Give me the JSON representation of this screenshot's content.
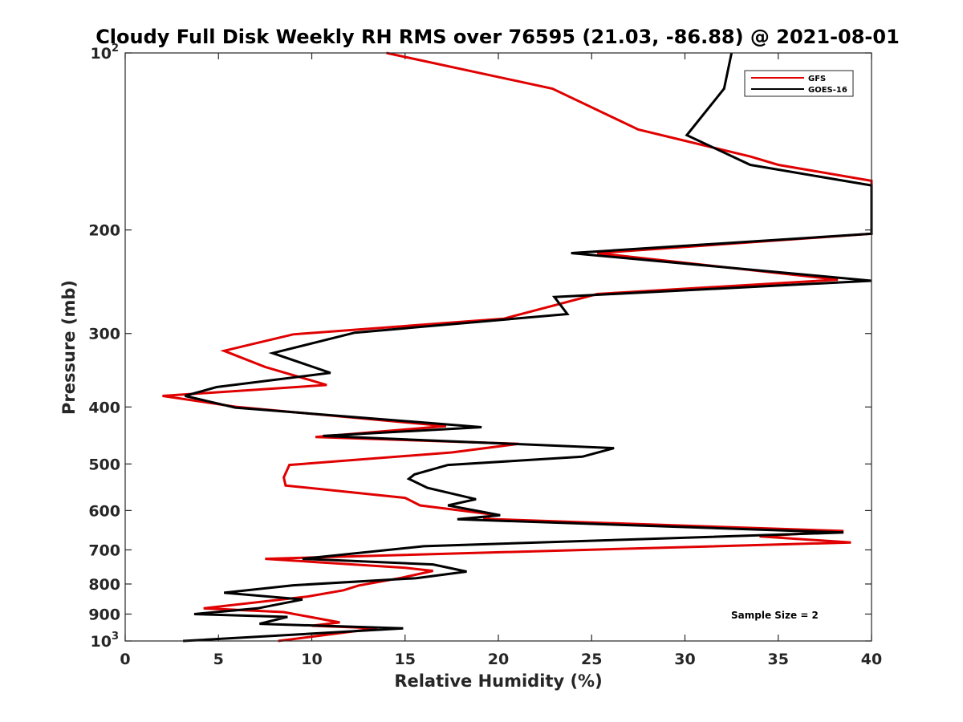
{
  "chart_data": {
    "type": "line",
    "title": "Cloudy Full Disk Weekly RH RMS over 76595 (21.03, -86.88) @ 2021-08-01",
    "xlabel": "Relative Humidity (%)",
    "ylabel": "Pressure (mb)",
    "xlim": [
      0,
      40
    ],
    "ylim": [
      100,
      1000
    ],
    "yscale": "log",
    "y_reversed": true,
    "x_ticks": [
      "0",
      "5",
      "10",
      "15",
      "20",
      "25",
      "30",
      "35",
      "40"
    ],
    "y_ticks": [
      {
        "value": 100,
        "base": "10",
        "exp": "2"
      },
      {
        "value": 200,
        "label": "200"
      },
      {
        "value": 300,
        "label": "300"
      },
      {
        "value": 400,
        "label": "400"
      },
      {
        "value": 500,
        "label": "500"
      },
      {
        "value": 600,
        "label": "600"
      },
      {
        "value": 700,
        "label": "700"
      },
      {
        "value": 800,
        "label": "800"
      },
      {
        "value": 900,
        "label": "900"
      },
      {
        "value": 1000,
        "base": "10",
        "exp": "3"
      }
    ],
    "legend": {
      "location": "top-right"
    },
    "annotation": "Sample Size = 2",
    "series": [
      {
        "name": "GFS",
        "color": "#e00000",
        "points": [
          [
            14.0,
            100
          ],
          [
            22.9,
            115
          ],
          [
            27.5,
            135
          ],
          [
            33.5,
            150
          ],
          [
            35.0,
            155
          ],
          [
            40.0,
            165
          ],
          [
            40.0,
            202
          ],
          [
            40.0,
            203
          ],
          [
            25.3,
            219
          ],
          [
            38.2,
            243
          ],
          [
            25.3,
            257
          ],
          [
            20.3,
            283
          ],
          [
            9.0,
            301
          ],
          [
            5.3,
            321
          ],
          [
            7.5,
            342
          ],
          [
            10.8,
            367
          ],
          [
            2.0,
            383
          ],
          [
            6.0,
            400
          ],
          [
            17.2,
            431
          ],
          [
            10.2,
            450
          ],
          [
            21.1,
            462
          ],
          [
            17.5,
            478
          ],
          [
            8.8,
            502
          ],
          [
            8.5,
            527
          ],
          [
            8.6,
            544
          ],
          [
            15.0,
            571
          ],
          [
            15.8,
            588
          ],
          [
            19.8,
            610
          ],
          [
            19.2,
            620
          ],
          [
            38.5,
            650
          ],
          [
            34.0,
            664
          ],
          [
            38.3,
            678
          ],
          [
            38.9,
            680
          ],
          [
            7.5,
            725
          ],
          [
            15.0,
            751
          ],
          [
            16.5,
            760
          ],
          [
            14.8,
            781
          ],
          [
            12.5,
            805
          ],
          [
            11.7,
            820
          ],
          [
            9.8,
            840
          ],
          [
            4.2,
            880
          ],
          [
            8.5,
            893
          ],
          [
            11.5,
            930
          ],
          [
            10.0,
            942
          ],
          [
            12.0,
            947
          ],
          [
            13.5,
            952
          ],
          [
            8.2,
            1000
          ]
        ]
      },
      {
        "name": "GOES-16",
        "color": "#000000",
        "points": [
          [
            32.5,
            100
          ],
          [
            32.1,
            115
          ],
          [
            30.1,
            138
          ],
          [
            33.5,
            155
          ],
          [
            40.0,
            168
          ],
          [
            40.0,
            203
          ],
          [
            23.9,
            219
          ],
          [
            40.0,
            244
          ],
          [
            23.0,
            260
          ],
          [
            23.7,
            278
          ],
          [
            12.3,
            299
          ],
          [
            7.9,
            324
          ],
          [
            11.0,
            350
          ],
          [
            4.9,
            370
          ],
          [
            3.2,
            383
          ],
          [
            5.9,
            401
          ],
          [
            19.1,
            433
          ],
          [
            10.6,
            448
          ],
          [
            26.2,
            470
          ],
          [
            24.5,
            486
          ],
          [
            17.3,
            502
          ],
          [
            15.5,
            521
          ],
          [
            15.2,
            530
          ],
          [
            16.2,
            549
          ],
          [
            18.8,
            574
          ],
          [
            17.3,
            588
          ],
          [
            20.1,
            611
          ],
          [
            17.8,
            621
          ],
          [
            38.5,
            654
          ],
          [
            16.0,
            690
          ],
          [
            9.5,
            725
          ],
          [
            16.5,
            741
          ],
          [
            18.3,
            762
          ],
          [
            15.6,
            782
          ],
          [
            9.0,
            804
          ],
          [
            5.3,
            828
          ],
          [
            9.5,
            850
          ],
          [
            7.1,
            880
          ],
          [
            3.7,
            900
          ],
          [
            8.7,
            910
          ],
          [
            7.2,
            935
          ],
          [
            14.9,
            952
          ],
          [
            3.1,
            1000
          ]
        ]
      }
    ]
  }
}
